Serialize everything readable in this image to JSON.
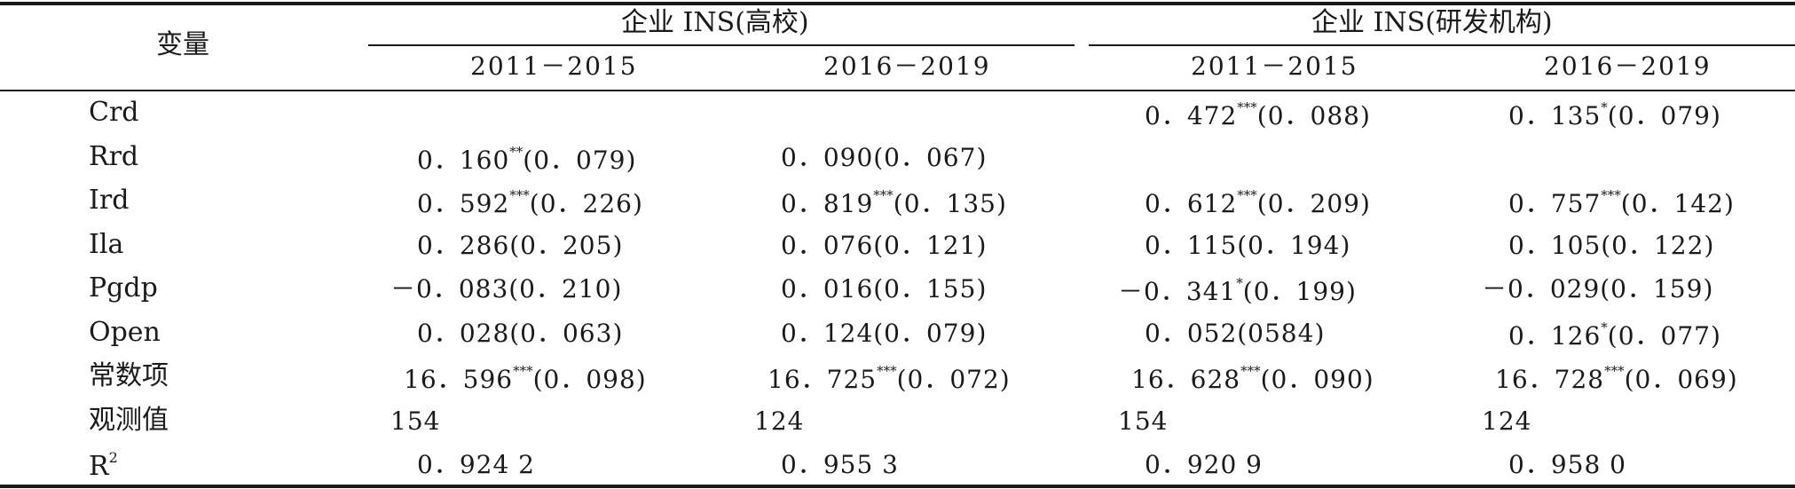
{
  "header": {
    "variable": "变量",
    "group1": "企业 INS(高校)",
    "group2": "企业 INS(研发机构)",
    "periods": [
      "2011－2015",
      "2016－2019",
      "2011－2015",
      "2016－2019"
    ]
  },
  "rows": [
    {
      "label": "Crd",
      "cells": [
        {
          "v": "",
          "stars": "",
          "rest": ""
        },
        {
          "v": "",
          "stars": "",
          "rest": ""
        },
        {
          "v": "0．472",
          "stars": "***",
          "rest": "(0．088)"
        },
        {
          "v": "0．135",
          "stars": "*",
          "rest": "(0．079)"
        }
      ]
    },
    {
      "label": "Rrd",
      "cells": [
        {
          "v": "0．160",
          "stars": "**",
          "rest": "(0．079)"
        },
        {
          "v": "0．090(0．067)",
          "stars": "",
          "rest": ""
        },
        {
          "v": "",
          "stars": "",
          "rest": ""
        },
        {
          "v": "",
          "stars": "",
          "rest": ""
        }
      ]
    },
    {
      "label": "Ird",
      "cells": [
        {
          "v": "0．592",
          "stars": "***",
          "rest": "(0．226)"
        },
        {
          "v": "0．819",
          "stars": "***",
          "rest": "(0．135)"
        },
        {
          "v": "0．612",
          "stars": "***",
          "rest": "(0．209)"
        },
        {
          "v": "0．757",
          "stars": "***",
          "rest": "(0．142)"
        }
      ]
    },
    {
      "label": "Ila",
      "cells": [
        {
          "v": "0．286(0．205)",
          "stars": "",
          "rest": ""
        },
        {
          "v": "0．076(0．121)",
          "stars": "",
          "rest": ""
        },
        {
          "v": "0．115(0．194)",
          "stars": "",
          "rest": ""
        },
        {
          "v": "0．105(0．122)",
          "stars": "",
          "rest": ""
        }
      ]
    },
    {
      "label": "Pgdp",
      "cells": [
        {
          "v": "－0．083(0．210)",
          "stars": "",
          "rest": ""
        },
        {
          "v": "0．016(0．155)",
          "stars": "",
          "rest": ""
        },
        {
          "v": "－0．341",
          "stars": "*",
          "rest": "(0．199)"
        },
        {
          "v": "－0．029(0．159)",
          "stars": "",
          "rest": ""
        }
      ]
    },
    {
      "label": "Open",
      "cells": [
        {
          "v": "0．028(0．063)",
          "stars": "",
          "rest": ""
        },
        {
          "v": "0．124(0．079)",
          "stars": "",
          "rest": ""
        },
        {
          "v": "0．052(0584)",
          "stars": "",
          "rest": ""
        },
        {
          "v": "0．126",
          "stars": "*",
          "rest": "(0．077)"
        }
      ]
    },
    {
      "label": "常数项",
      "cells": [
        {
          "v": "16．596",
          "stars": "***",
          "rest": "(0．098)"
        },
        {
          "v": "16．725",
          "stars": "***",
          "rest": "(0．072)"
        },
        {
          "v": "16．628",
          "stars": "***",
          "rest": "(0．090)"
        },
        {
          "v": "16．728",
          "stars": "***",
          "rest": "(0．069)"
        }
      ]
    },
    {
      "label": "观测值",
      "cells": [
        {
          "v": "154",
          "stars": "",
          "rest": ""
        },
        {
          "v": "124",
          "stars": "",
          "rest": ""
        },
        {
          "v": "154",
          "stars": "",
          "rest": ""
        },
        {
          "v": "124",
          "stars": "",
          "rest": ""
        }
      ]
    },
    {
      "label": "R",
      "label_sup": "2",
      "cells": [
        {
          "v": "0．924 2",
          "stars": "",
          "rest": ""
        },
        {
          "v": "0．955 3",
          "stars": "",
          "rest": ""
        },
        {
          "v": "0．920 9",
          "stars": "",
          "rest": ""
        },
        {
          "v": "0．958 0",
          "stars": "",
          "rest": ""
        }
      ]
    }
  ]
}
